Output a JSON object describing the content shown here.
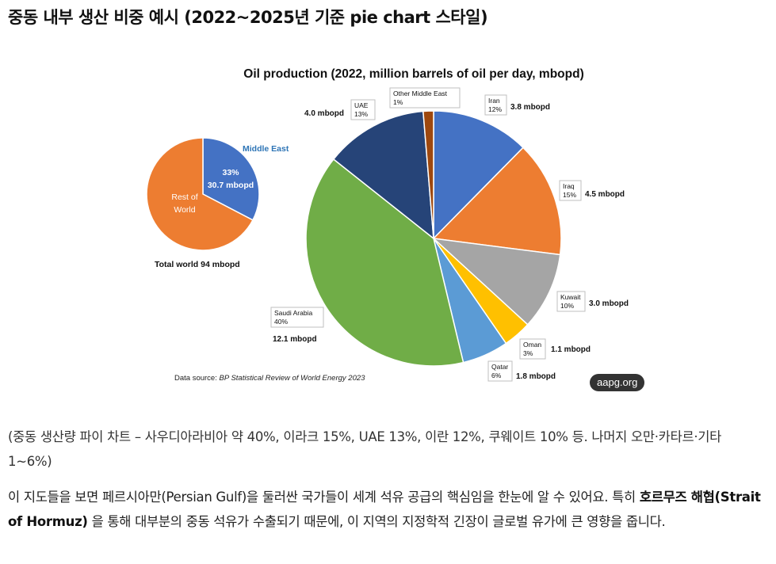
{
  "page": {
    "heading": "중동 내부 생산 비중 예시 (2022~2025년 기준 pie chart 스타일)",
    "watermark": "aapg.org",
    "caption": "(중동 생산량 파이 차트 – 사우디아라비아 약 40%, 이라크 15%, UAE 13%, 이란 12%, 쿠웨이트 10% 등. 나머지 오만·카타르·기타 1~6%)",
    "body": {
      "part1": "이 지도들을 보면 페르시아만(Persian Gulf)을 둘러싼 국가들이 세계 석유 공급의 핵심임을 한눈에 알 수 있어요. 특히 ",
      "bold": "호르무즈 해협(Strait of Hormuz)",
      "part2": " 을 통해 대부분의 중동 석유가 수출되기 때문에, 이 지역의 지정학적 긴장이 글로벌 유가에 큰 영향을 줍니다."
    }
  },
  "colors": {
    "middle_east": "#4472C4",
    "rest_of_world": "#ED7D31",
    "middle_east_label": "#2E75B6"
  },
  "chart_data": [
    {
      "type": "pie",
      "title": "Oil production (2022, million barrels of oil per day, mbopd)",
      "source_prefix": "Data source: ",
      "source_italic": "BP Statistical Review of World Energy 2023",
      "series": [
        {
          "name": "Iran",
          "percent": "12%",
          "value": 3.8,
          "value_label": "3.8 mbopd",
          "color": "#4472C4"
        },
        {
          "name": "Iraq",
          "percent": "15%",
          "value": 4.5,
          "value_label": "4.5 mbopd",
          "color": "#ED7D31"
        },
        {
          "name": "Kuwait",
          "percent": "10%",
          "value": 3.0,
          "value_label": "3.0 mbopd",
          "color": "#A5A5A5"
        },
        {
          "name": "Oman",
          "percent": "3%",
          "value": 1.1,
          "value_label": "1.1 mbopd",
          "color": "#FFC000"
        },
        {
          "name": "Qatar",
          "percent": "6%",
          "value": 1.8,
          "value_label": "1.8 mbopd",
          "color": "#5B9BD5"
        },
        {
          "name": "Saudi Arabia",
          "percent": "40%",
          "value": 12.1,
          "value_label": "12.1 mbopd",
          "color": "#70AD47"
        },
        {
          "name": "UAE",
          "percent": "13%",
          "value": 4.0,
          "value_label": "4.0 mbopd",
          "color": "#264478"
        },
        {
          "name": "Other Middle East",
          "percent": "1%",
          "value": 0.4,
          "value_label": "",
          "color": "#9E480E"
        }
      ]
    },
    {
      "type": "pie",
      "title": "Total world 94 mbopd",
      "series": [
        {
          "name": "Middle East",
          "percent": "33%",
          "value": 30.7,
          "value_label": "30.7 mbopd",
          "color": "#4472C4"
        },
        {
          "name": "Rest of World",
          "value": 63.3,
          "color": "#ED7D31"
        }
      ]
    }
  ]
}
